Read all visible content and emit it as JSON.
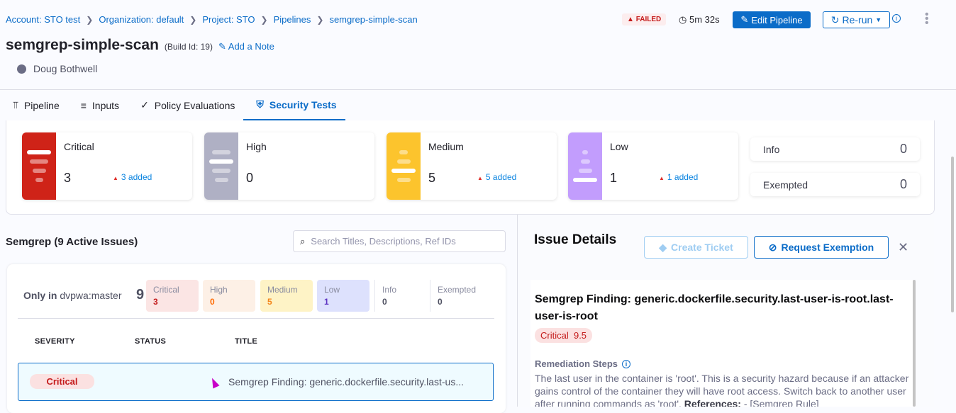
{
  "breadcrumb": [
    "Account: STO test",
    "Organization: default",
    "Project: STO",
    "Pipelines",
    "semgrep-simple-scan"
  ],
  "header": {
    "title": "semgrep-simple-scan",
    "build_id": "(Build Id: 19)",
    "add_note": "Add a Note",
    "user": "Doug Bothwell",
    "status": "FAILED",
    "duration": "5m 32s",
    "edit_label": "Edit Pipeline",
    "rerun_label": "Re-run"
  },
  "tabs": [
    {
      "label": "Pipeline"
    },
    {
      "label": "Inputs"
    },
    {
      "label": "Policy Evaluations"
    },
    {
      "label": "Security Tests",
      "active": true
    }
  ],
  "summary": {
    "cards": [
      {
        "label": "Critical",
        "count": "3",
        "added": "3 added",
        "color": "#cf2318"
      },
      {
        "label": "High",
        "count": "0",
        "added": "",
        "color": "#afb0c4"
      },
      {
        "label": "Medium",
        "count": "5",
        "added": "5 added",
        "color": "#fcc42d"
      },
      {
        "label": "Low",
        "count": "1",
        "added": "1 added",
        "color": "#c29dfd"
      }
    ],
    "info": {
      "label": "Info",
      "count": "0"
    },
    "exempted": {
      "label": "Exempted",
      "count": "0"
    }
  },
  "issues": {
    "title": "Semgrep (9 Active Issues)",
    "search_placeholder": "Search Titles, Descriptions, Ref IDs",
    "only_in_prefix": "Only in",
    "only_in_target": "dvpwa:master",
    "total": "9",
    "breakdown": [
      {
        "label": "Critical",
        "count": "3",
        "bg": "#fbe5e4",
        "color": "#c41b1b"
      },
      {
        "label": "High",
        "count": "0",
        "bg": "#fdf0e6",
        "color": "#ff6a00"
      },
      {
        "label": "Medium",
        "count": "5",
        "bg": "#fef3c6",
        "color": "#f3861b"
      },
      {
        "label": "Low",
        "count": "1",
        "bg": "#dde1fd",
        "color": "#5b31c1"
      },
      {
        "label": "Info",
        "count": "0"
      },
      {
        "label": "Exempted",
        "count": "0"
      }
    ],
    "columns": [
      "SEVERITY",
      "STATUS",
      "TITLE"
    ],
    "rows": [
      {
        "severity": "Critical",
        "status": "",
        "title": "Semgrep Finding: generic.dockerfile.security.last-us..."
      }
    ]
  },
  "details": {
    "title": "Issue Details",
    "create_ticket": "Create Ticket",
    "request_exemption": "Request Exemption",
    "finding": "Semgrep Finding: generic.dockerfile.security.last-user-is-root.last-user-is-root",
    "severity": "Critical",
    "score": "9.5",
    "remediation_label": "Remediation Steps",
    "remediation_text": "The last user in the container is 'root'. This is a security hazard because if an attacker gains control of the container they will have root access. Switch back to another user after running commands as 'root'.",
    "references_label": "References:",
    "references_text": " - [Semgrep Rule]"
  }
}
